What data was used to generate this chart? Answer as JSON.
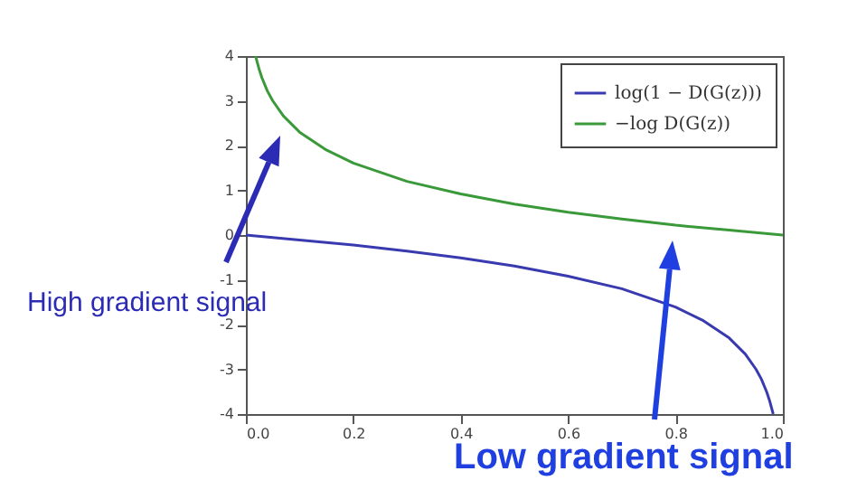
{
  "chart_data": {
    "type": "line",
    "series": [
      {
        "name": "log(1 − D(G(z)))",
        "color": "#3a3ab0",
        "x": [
          0,
          0.1,
          0.2,
          0.3,
          0.4,
          0.5,
          0.6,
          0.7,
          0.8,
          0.85,
          0.9,
          0.93,
          0.95,
          0.96,
          0.97,
          0.975,
          0.982
        ],
        "values": [
          0,
          -0.11,
          -0.22,
          -0.36,
          -0.51,
          -0.69,
          -0.92,
          -1.2,
          -1.61,
          -1.9,
          -2.3,
          -2.66,
          -3.0,
          -3.22,
          -3.51,
          -3.69,
          -4.0
        ]
      },
      {
        "name": "−log D(G(z))",
        "color": "#3a9a3a",
        "x": [
          0.018,
          0.025,
          0.03,
          0.04,
          0.05,
          0.07,
          0.1,
          0.15,
          0.2,
          0.3,
          0.4,
          0.5,
          0.6,
          0.7,
          0.8,
          0.9,
          1.0
        ],
        "values": [
          4.0,
          3.69,
          3.51,
          3.22,
          3.0,
          2.66,
          2.3,
          1.9,
          1.61,
          1.2,
          0.92,
          0.69,
          0.51,
          0.36,
          0.22,
          0.11,
          0
        ]
      }
    ],
    "xlim": [
      0,
      1
    ],
    "xticks": [
      {
        "value": 0,
        "label": "0.0"
      },
      0.2,
      0.4,
      0.6,
      0.8,
      {
        "value": 1,
        "label": "1.0"
      }
    ],
    "ylim": [
      -4,
      4
    ],
    "yticks": [
      -4,
      -3,
      -2,
      -1,
      0,
      1,
      2,
      3,
      4
    ],
    "legend": "top right",
    "grid": false,
    "annotations": [
      "High gradient signal",
      "Low gradient signal"
    ]
  }
}
